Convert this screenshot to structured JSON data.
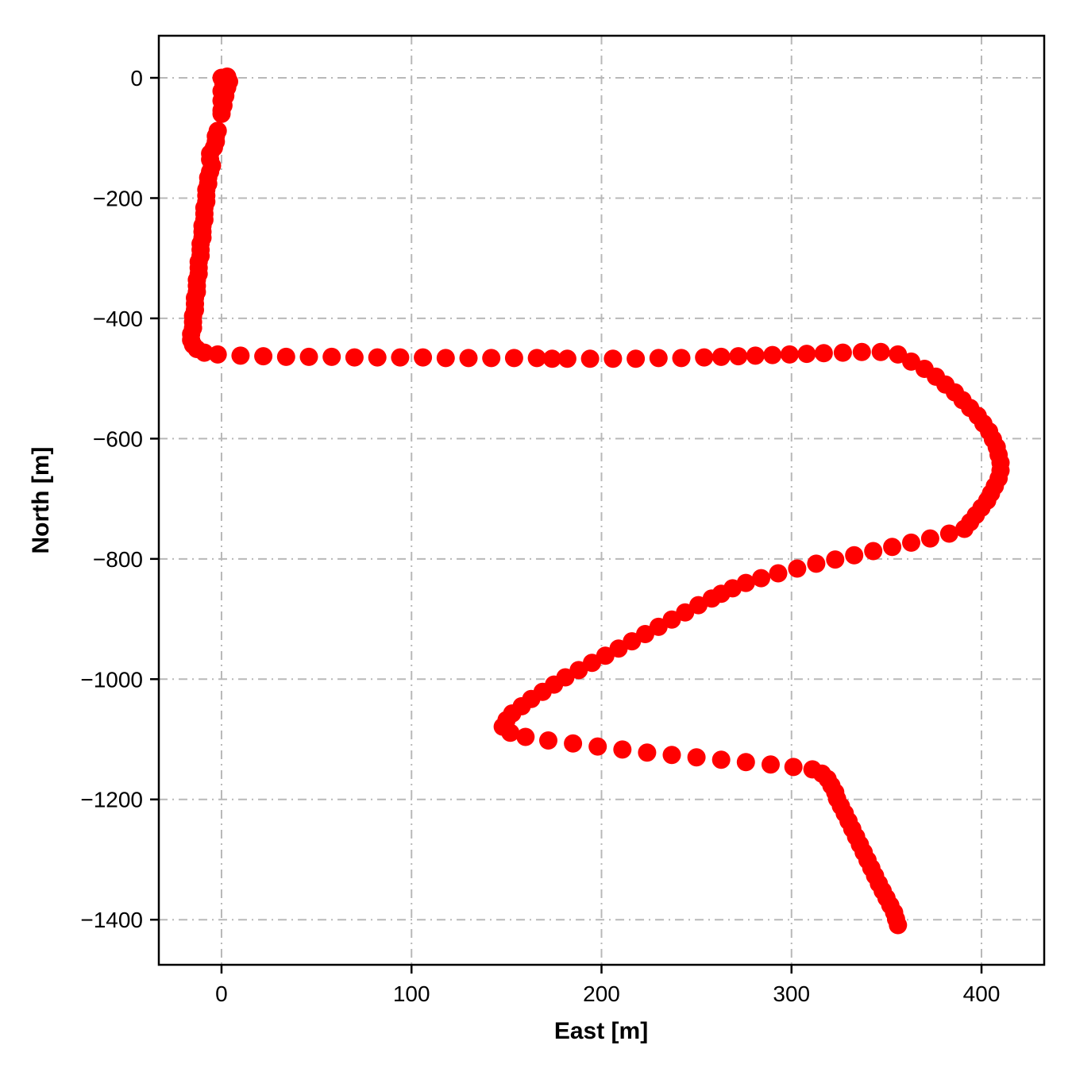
{
  "chart_data": {
    "type": "scatter",
    "title": "",
    "xlabel": "East [m]",
    "ylabel": "North [m]",
    "xlim": [
      -33,
      433
    ],
    "ylim": [
      -1475,
      70
    ],
    "xticks": [
      0,
      100,
      200,
      300,
      400
    ],
    "yticks": [
      0,
      -200,
      -400,
      -600,
      -800,
      -1000,
      -1200,
      -1400
    ],
    "grid": true,
    "grid_style": "dashdot",
    "grid_color": "#b8b8b8",
    "marker_color": "#ff0000",
    "marker_radius_px": 11.5,
    "legend": "none",
    "points": [
      [
        3,
        2
      ],
      [
        0,
        0
      ],
      [
        4,
        -6
      ],
      [
        1,
        -10
      ],
      [
        3,
        -16
      ],
      [
        0,
        -22
      ],
      [
        2,
        -30
      ],
      [
        0,
        -38
      ],
      [
        1,
        -46
      ],
      [
        0,
        -54
      ],
      [
        0,
        -60
      ],
      [
        -2,
        -88
      ],
      [
        -3,
        -97
      ],
      [
        -3,
        -106
      ],
      [
        -4,
        -116
      ],
      [
        -6,
        -126
      ],
      [
        -6,
        -136
      ],
      [
        -5,
        -146
      ],
      [
        -6,
        -156
      ],
      [
        -7,
        -166
      ],
      [
        -7,
        -176
      ],
      [
        -8,
        -186
      ],
      [
        -8,
        -196
      ],
      [
        -8,
        -206
      ],
      [
        -9,
        -216
      ],
      [
        -9,
        -226
      ],
      [
        -9,
        -236
      ],
      [
        -10,
        -246
      ],
      [
        -10,
        -256
      ],
      [
        -10,
        -266
      ],
      [
        -11,
        -276
      ],
      [
        -11,
        -286
      ],
      [
        -11,
        -296
      ],
      [
        -12,
        -306
      ],
      [
        -12,
        -316
      ],
      [
        -12,
        -326
      ],
      [
        -13,
        -336
      ],
      [
        -13,
        -346
      ],
      [
        -13,
        -356
      ],
      [
        -14,
        -366
      ],
      [
        -14,
        -376
      ],
      [
        -14,
        -386
      ],
      [
        -15,
        -396
      ],
      [
        -15,
        -406
      ],
      [
        -15,
        -416
      ],
      [
        -16,
        -426
      ],
      [
        -16,
        -436
      ],
      [
        -15,
        -444
      ],
      [
        -13,
        -451
      ],
      [
        -9,
        -457
      ],
      [
        -2,
        -460
      ],
      [
        10,
        -462
      ],
      [
        22,
        -463
      ],
      [
        34,
        -464
      ],
      [
        46,
        -464
      ],
      [
        58,
        -464
      ],
      [
        70,
        -465
      ],
      [
        82,
        -465
      ],
      [
        94,
        -465
      ],
      [
        106,
        -465
      ],
      [
        118,
        -466
      ],
      [
        130,
        -466
      ],
      [
        142,
        -466
      ],
      [
        154,
        -466
      ],
      [
        166,
        -466
      ],
      [
        174,
        -467
      ],
      [
        182,
        -467
      ],
      [
        194,
        -467
      ],
      [
        206,
        -467
      ],
      [
        218,
        -467
      ],
      [
        230,
        -466
      ],
      [
        242,
        -466
      ],
      [
        254,
        -465
      ],
      [
        263,
        -464
      ],
      [
        272,
        -463
      ],
      [
        281,
        -462
      ],
      [
        290,
        -461
      ],
      [
        299,
        -460
      ],
      [
        308,
        -459
      ],
      [
        317,
        -458
      ],
      [
        327,
        -457
      ],
      [
        337,
        -456
      ],
      [
        347,
        -456
      ],
      [
        356,
        -460
      ],
      [
        363,
        -472
      ],
      [
        370,
        -484
      ],
      [
        376,
        -497
      ],
      [
        381,
        -510
      ],
      [
        386,
        -523
      ],
      [
        390,
        -536
      ],
      [
        394,
        -549
      ],
      [
        398,
        -562
      ],
      [
        401,
        -575
      ],
      [
        404,
        -588
      ],
      [
        406,
        -601
      ],
      [
        408,
        -614
      ],
      [
        409,
        -627
      ],
      [
        410,
        -640
      ],
      [
        410,
        -653
      ],
      [
        409,
        -666
      ],
      [
        407,
        -679
      ],
      [
        405,
        -691
      ],
      [
        403,
        -703
      ],
      [
        400,
        -715
      ],
      [
        397,
        -727
      ],
      [
        394,
        -739
      ],
      [
        391,
        -750
      ],
      [
        383,
        -758
      ],
      [
        373,
        -766
      ],
      [
        363,
        -773
      ],
      [
        353,
        -780
      ],
      [
        343,
        -787
      ],
      [
        333,
        -794
      ],
      [
        323,
        -801
      ],
      [
        313,
        -808
      ],
      [
        303,
        -816
      ],
      [
        293,
        -824
      ],
      [
        284,
        -832
      ],
      [
        276,
        -840
      ],
      [
        269,
        -849
      ],
      [
        263,
        -858
      ],
      [
        258,
        -866
      ],
      [
        251,
        -877
      ],
      [
        244,
        -889
      ],
      [
        237,
        -901
      ],
      [
        230,
        -913
      ],
      [
        223,
        -925
      ],
      [
        216,
        -937
      ],
      [
        209,
        -949
      ],
      [
        202,
        -961
      ],
      [
        195,
        -973
      ],
      [
        188,
        -985
      ],
      [
        181,
        -997
      ],
      [
        175,
        -1009
      ],
      [
        169,
        -1021
      ],
      [
        163,
        -1033
      ],
      [
        158,
        -1045
      ],
      [
        153,
        -1057
      ],
      [
        150,
        -1068
      ],
      [
        148,
        -1079
      ],
      [
        152,
        -1089
      ],
      [
        160,
        -1096
      ],
      [
        172,
        -1102
      ],
      [
        185,
        -1107
      ],
      [
        198,
        -1112
      ],
      [
        211,
        -1117
      ],
      [
        224,
        -1122
      ],
      [
        237,
        -1126
      ],
      [
        250,
        -1130
      ],
      [
        263,
        -1134
      ],
      [
        276,
        -1138
      ],
      [
        289,
        -1142
      ],
      [
        301,
        -1146
      ],
      [
        311,
        -1150
      ],
      [
        316,
        -1157
      ],
      [
        319,
        -1166
      ],
      [
        321,
        -1177
      ],
      [
        323,
        -1188
      ],
      [
        324,
        -1199
      ],
      [
        326,
        -1211
      ],
      [
        328,
        -1223
      ],
      [
        330,
        -1236
      ],
      [
        332,
        -1249
      ],
      [
        334,
        -1262
      ],
      [
        336,
        -1275
      ],
      [
        338,
        -1288
      ],
      [
        340,
        -1301
      ],
      [
        342,
        -1314
      ],
      [
        344,
        -1327
      ],
      [
        346,
        -1340
      ],
      [
        348,
        -1352
      ],
      [
        350,
        -1364
      ],
      [
        352,
        -1376
      ],
      [
        354,
        -1388
      ],
      [
        355,
        -1399
      ],
      [
        356,
        -1409
      ]
    ]
  }
}
